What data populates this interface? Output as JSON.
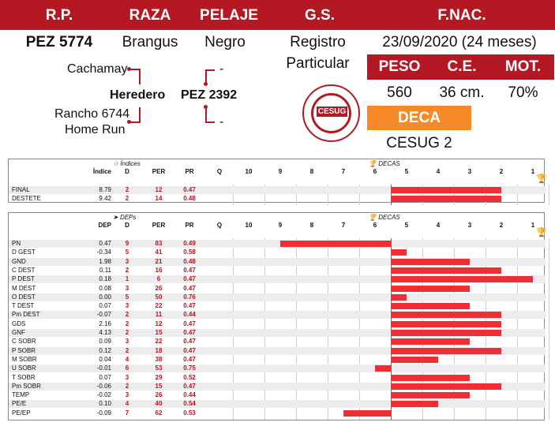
{
  "header": {
    "labels": {
      "rp": "R.P.",
      "raza": "RAZA",
      "pelaje": "PELAJE",
      "gs": "G.S.",
      "fnac": "F.NAC."
    },
    "values": {
      "rp": "PEZ 5774",
      "raza": "Brangus",
      "pelaje": "Negro",
      "gs_line1": "Registro",
      "gs_line2": "Particular",
      "fnac": "23/09/2020 (24 meses)"
    }
  },
  "pedigree": {
    "sire": "Heredero",
    "sire_sire": "Cachamay",
    "sire_dam_line1": "Rancho 6744",
    "sire_dam_line2": "Home Run",
    "dam": "PEZ 2392",
    "dam_sire": "-",
    "dam_dam": "-"
  },
  "stats": {
    "labels": {
      "peso": "PESO",
      "ce": "C.E.",
      "mot": "MOT."
    },
    "values": {
      "peso": "560",
      "ce": "36 cm.",
      "mot": "70%"
    }
  },
  "deca": {
    "label": "DECA",
    "value": "CESUG 2"
  },
  "logo": {
    "text": "CESUG"
  },
  "colors": {
    "brand_red": "#b41823",
    "orange": "#f58a26",
    "bar_red": "#ee2d34"
  },
  "indices_table": {
    "section_label": "Índices",
    "decas_label": "DECAS",
    "headers": [
      "Índice",
      "D",
      "PER",
      "PR",
      "Q"
    ],
    "deca_ticks": [
      "10",
      "9",
      "8",
      "7",
      "6",
      "5",
      "4",
      "3",
      "2",
      "1"
    ],
    "rows": [
      {
        "name": "FINAL",
        "value": "8.79",
        "d": "2",
        "per": "12",
        "pr": "0.47"
      },
      {
        "name": "DESTETE",
        "value": "9.42",
        "d": "2",
        "per": "14",
        "pr": "0.48"
      }
    ]
  },
  "deps_table": {
    "section_label": "DEPs",
    "decas_label": "DECAS",
    "headers": [
      "DEP",
      "D",
      "PER",
      "PR",
      "Q"
    ],
    "deca_ticks": [
      "10",
      "9",
      "8",
      "7",
      "6",
      "5",
      "4",
      "3",
      "2",
      "1"
    ],
    "rows": [
      {
        "name": "PN",
        "value": "0.47",
        "d": "9",
        "per": "83",
        "pr": "0.49"
      },
      {
        "name": "D GEST",
        "value": "-0.34",
        "d": "5",
        "per": "41",
        "pr": "0.58"
      },
      {
        "name": "GND",
        "value": "1.98",
        "d": "3",
        "per": "21",
        "pr": "0.48"
      },
      {
        "name": "C DEST",
        "value": "0.11",
        "d": "2",
        "per": "16",
        "pr": "0.47"
      },
      {
        "name": "P DEST",
        "value": "0.18",
        "d": "1",
        "per": "6",
        "pr": "0.47"
      },
      {
        "name": "M DEST",
        "value": "0.08",
        "d": "3",
        "per": "26",
        "pr": "0.47"
      },
      {
        "name": "O DEST",
        "value": "0.00",
        "d": "5",
        "per": "50",
        "pr": "0.76"
      },
      {
        "name": "T DEST",
        "value": "0.07",
        "d": "3",
        "per": "22",
        "pr": "0.47"
      },
      {
        "name": "Pm DEST",
        "value": "-0.07",
        "d": "2",
        "per": "11",
        "pr": "0.44"
      },
      {
        "name": "GDS",
        "value": "2.16",
        "d": "2",
        "per": "12",
        "pr": "0.47"
      },
      {
        "name": "GNF",
        "value": "4.13",
        "d": "2",
        "per": "15",
        "pr": "0.47"
      },
      {
        "name": "C SOBR",
        "value": "0.09",
        "d": "3",
        "per": "22",
        "pr": "0.47"
      },
      {
        "name": "P SOBR",
        "value": "0.12",
        "d": "2",
        "per": "18",
        "pr": "0.47"
      },
      {
        "name": "M SOBR",
        "value": "0.04",
        "d": "4",
        "per": "38",
        "pr": "0.47"
      },
      {
        "name": "U SOBR",
        "value": "-0.01",
        "d": "6",
        "per": "53",
        "pr": "0.75"
      },
      {
        "name": "T SOBR",
        "value": "0.07",
        "d": "3",
        "per": "29",
        "pr": "0.52"
      },
      {
        "name": "Pm SOBR",
        "value": "-0.06",
        "d": "2",
        "per": "15",
        "pr": "0.47"
      },
      {
        "name": "TEMP",
        "value": "-0.02",
        "d": "3",
        "per": "26",
        "pr": "0.44"
      },
      {
        "name": "PE/E",
        "value": "0.10",
        "d": "4",
        "per": "40",
        "pr": "0.54"
      },
      {
        "name": "PE/EP",
        "value": "-0.09",
        "d": "7",
        "per": "62",
        "pr": "0.53"
      }
    ]
  }
}
